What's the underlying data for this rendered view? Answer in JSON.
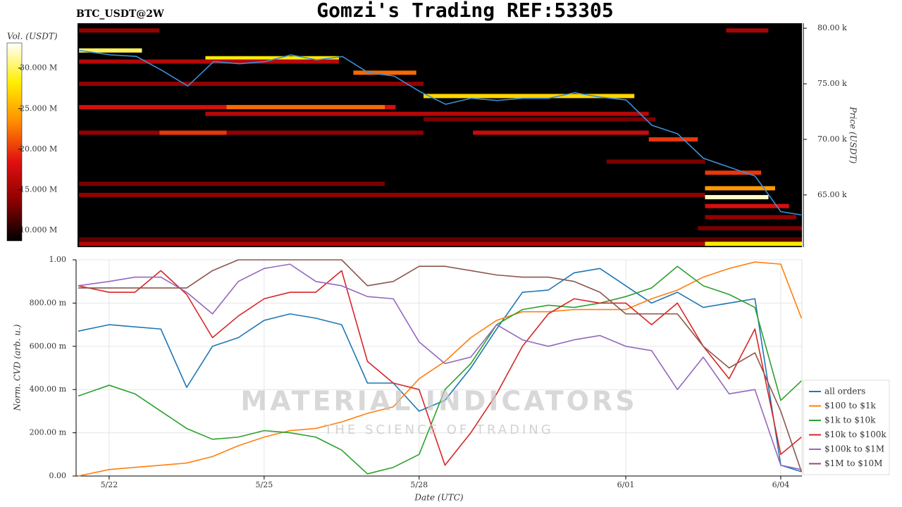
{
  "chart_data": [
    {
      "type": "heatmap",
      "title": "Gomzi's Trading REF:53305",
      "label": "BTC_USDT@2W",
      "ylabel": "Price (USDT)",
      "colorbar_label": "Vol. (USDT)",
      "xlim": [
        -0.64,
        13.41
      ],
      "ylim": [
        60300,
        80450
      ],
      "yticks": [
        {
          "value": 65000,
          "label": "65.00 k"
        },
        {
          "value": 70000,
          "label": "70.00 k"
        },
        {
          "value": 75000,
          "label": "75.00 k"
        },
        {
          "value": 80000,
          "label": "80.00 k"
        }
      ],
      "clim": [
        8700000,
        33100000
      ],
      "cticks": [
        {
          "value": 10000000,
          "label": "10.000 M"
        },
        {
          "value": 15000000,
          "label": "15.000 M"
        },
        {
          "value": 20000000,
          "label": "20.000 M"
        },
        {
          "value": 25000000,
          "label": "25.000 M"
        },
        {
          "value": 30000000,
          "label": "30.000 M"
        }
      ],
      "colormap": [
        "#000000",
        "#8b0000",
        "#e01010",
        "#ff8c00",
        "#ffee00",
        "#ffffff"
      ],
      "segments": [
        {
          "price": 79800,
          "x0": -0.61,
          "x1": 0.95,
          "volume": 14000000
        },
        {
          "price": 79800,
          "x0": 11.94,
          "x1": 12.76,
          "volume": 15000000
        },
        {
          "price": 78000,
          "x0": -0.61,
          "x1": 0.61,
          "volume": 30000000
        },
        {
          "price": 77300,
          "x0": 1.84,
          "x1": 4.43,
          "volume": 28000000
        },
        {
          "price": 77000,
          "x0": -0.61,
          "x1": 4.43,
          "volume": 16000000
        },
        {
          "price": 76000,
          "x0": 4.71,
          "x1": 5.93,
          "volume": 22000000
        },
        {
          "price": 75000,
          "x0": -0.61,
          "x1": 6.07,
          "volume": 14000000
        },
        {
          "price": 73900,
          "x0": 6.07,
          "x1": 10.16,
          "volume": 27000000
        },
        {
          "price": 72900,
          "x0": -0.61,
          "x1": 5.53,
          "volume": 18000000
        },
        {
          "price": 72900,
          "x0": 2.25,
          "x1": 5.32,
          "volume": 22000000
        },
        {
          "price": 72300,
          "x0": 1.84,
          "x1": 10.44,
          "volume": 16000000
        },
        {
          "price": 71800,
          "x0": 6.07,
          "x1": 10.57,
          "volume": 13000000
        },
        {
          "price": 70600,
          "x0": -0.61,
          "x1": 6.07,
          "volume": 14000000
        },
        {
          "price": 70600,
          "x0": 0.95,
          "x1": 2.25,
          "volume": 20000000
        },
        {
          "price": 70600,
          "x0": 7.03,
          "x1": 10.44,
          "volume": 17000000
        },
        {
          "price": 70000,
          "x0": 10.44,
          "x1": 11.39,
          "volume": 20000000
        },
        {
          "price": 68000,
          "x0": 9.62,
          "x1": 11.53,
          "volume": 13000000
        },
        {
          "price": 67000,
          "x0": 11.53,
          "x1": 12.62,
          "volume": 20000000
        },
        {
          "price": 66000,
          "x0": -0.61,
          "x1": 5.32,
          "volume": 13000000
        },
        {
          "price": 65600,
          "x0": 11.53,
          "x1": 12.89,
          "volume": 24000000
        },
        {
          "price": 65000,
          "x0": -0.61,
          "x1": 11.53,
          "volume": 14000000
        },
        {
          "price": 64800,
          "x0": 11.53,
          "x1": 12.76,
          "volume": 32000000
        },
        {
          "price": 64000,
          "x0": 11.53,
          "x1": 13.16,
          "volume": 18000000
        },
        {
          "price": 63000,
          "x0": 11.53,
          "x1": 13.3,
          "volume": 14000000
        },
        {
          "price": 62000,
          "x0": 11.39,
          "x1": 13.41,
          "volume": 13000000
        },
        {
          "price": 61000,
          "x0": -0.61,
          "x1": 13.41,
          "volume": 12000000
        },
        {
          "price": 60600,
          "x0": -0.61,
          "x1": 11.53,
          "volume": 16000000
        },
        {
          "price": 60600,
          "x0": 11.53,
          "x1": 13.41,
          "volume": 28000000
        }
      ],
      "price_color": "#3a8fd6",
      "x": [
        -0.6,
        0,
        0.5,
        1,
        1.5,
        2,
        2.5,
        3,
        3.5,
        4,
        4.5,
        5,
        5.5,
        6,
        6.5,
        7,
        7.5,
        8,
        8.5,
        9,
        9.5,
        10,
        10.5,
        11,
        11.5,
        12,
        12.5,
        13,
        13.4
      ],
      "price": [
        78000,
        77600,
        77470,
        76200,
        74800,
        77000,
        76800,
        77000,
        77600,
        77150,
        77450,
        76000,
        75700,
        74300,
        73160,
        73700,
        73500,
        73700,
        73700,
        74200,
        73800,
        73550,
        71270,
        70500,
        68300,
        67500,
        66700,
        63500,
        63200
      ]
    },
    {
      "type": "line",
      "ylabel": "Norm. CVD (arb. u.)",
      "xlabel": "Date (UTC)",
      "watermark": "MATERIAL INDICATORS",
      "watermark_sub": "THE SCIENCE OF TRADING",
      "xlim": [
        -0.64,
        13.41
      ],
      "ylim": [
        0,
        1
      ],
      "xticks": [
        {
          "value": 0,
          "label": "5/22"
        },
        {
          "value": 3,
          "label": "5/25"
        },
        {
          "value": 6,
          "label": "5/28"
        },
        {
          "value": 10,
          "label": "6/01"
        },
        {
          "value": 13,
          "label": "6/04"
        }
      ],
      "yticks": [
        {
          "value": 0,
          "label": "0.00"
        },
        {
          "value": 0.2,
          "label": "200.00 m"
        },
        {
          "value": 0.4,
          "label": "400.00 m"
        },
        {
          "value": 0.6,
          "label": "600.00 m"
        },
        {
          "value": 0.8,
          "label": "800.00 m"
        },
        {
          "value": 1,
          "label": "1.00"
        }
      ],
      "grid": true,
      "legend": "lower right",
      "x": [
        -0.6,
        0,
        0.5,
        1,
        1.5,
        2,
        2.5,
        3,
        3.5,
        4,
        4.5,
        5,
        5.5,
        6,
        6.5,
        7,
        7.5,
        8,
        8.5,
        9,
        9.5,
        10,
        10.5,
        11,
        11.5,
        12,
        12.5,
        13,
        13.4
      ],
      "series": [
        {
          "name": "all orders",
          "color": "#1f77b4",
          "values": [
            0.67,
            0.7,
            0.69,
            0.68,
            0.41,
            0.6,
            0.64,
            0.72,
            0.75,
            0.73,
            0.7,
            0.43,
            0.43,
            0.3,
            0.35,
            0.5,
            0.68,
            0.85,
            0.86,
            0.94,
            0.96,
            0.88,
            0.8,
            0.85,
            0.78,
            0.8,
            0.82,
            0.05,
            0.02
          ]
        },
        {
          "name": "$100 to $1k",
          "color": "#ff7f0e",
          "values": [
            0.0,
            0.03,
            0.04,
            0.05,
            0.06,
            0.09,
            0.14,
            0.18,
            0.21,
            0.22,
            0.25,
            0.29,
            0.32,
            0.45,
            0.53,
            0.64,
            0.72,
            0.76,
            0.76,
            0.77,
            0.77,
            0.77,
            0.82,
            0.86,
            0.92,
            0.96,
            0.99,
            0.98,
            0.73
          ]
        },
        {
          "name": "$1k to $10k",
          "color": "#2ca02c",
          "values": [
            0.37,
            0.42,
            0.38,
            0.3,
            0.22,
            0.17,
            0.18,
            0.21,
            0.2,
            0.18,
            0.12,
            0.01,
            0.04,
            0.1,
            0.4,
            0.52,
            0.7,
            0.77,
            0.79,
            0.78,
            0.8,
            0.83,
            0.87,
            0.97,
            0.88,
            0.84,
            0.78,
            0.35,
            0.44
          ]
        },
        {
          "name": "$10k to $100k",
          "color": "#d62728",
          "values": [
            0.88,
            0.85,
            0.85,
            0.95,
            0.84,
            0.64,
            0.74,
            0.82,
            0.85,
            0.85,
            0.95,
            0.53,
            0.43,
            0.4,
            0.05,
            0.2,
            0.38,
            0.6,
            0.75,
            0.82,
            0.8,
            0.8,
            0.7,
            0.8,
            0.6,
            0.45,
            0.68,
            0.1,
            0.18
          ]
        },
        {
          "name": "$100k to $1M",
          "color": "#9467bd",
          "values": [
            0.88,
            0.9,
            0.92,
            0.92,
            0.85,
            0.75,
            0.9,
            0.96,
            0.98,
            0.9,
            0.88,
            0.83,
            0.82,
            0.62,
            0.52,
            0.55,
            0.7,
            0.63,
            0.6,
            0.63,
            0.65,
            0.6,
            0.58,
            0.4,
            0.55,
            0.38,
            0.4,
            0.05,
            0.03
          ]
        },
        {
          "name": "$1M to $10M",
          "color": "#8c564b",
          "values": [
            0.87,
            0.87,
            0.87,
            0.87,
            0.87,
            0.95,
            1.0,
            1.0,
            1.0,
            1.0,
            1.0,
            0.88,
            0.9,
            0.97,
            0.97,
            0.95,
            0.93,
            0.92,
            0.92,
            0.9,
            0.85,
            0.75,
            0.75,
            0.75,
            0.6,
            0.5,
            0.57,
            0.3,
            0.02
          ]
        }
      ]
    }
  ]
}
